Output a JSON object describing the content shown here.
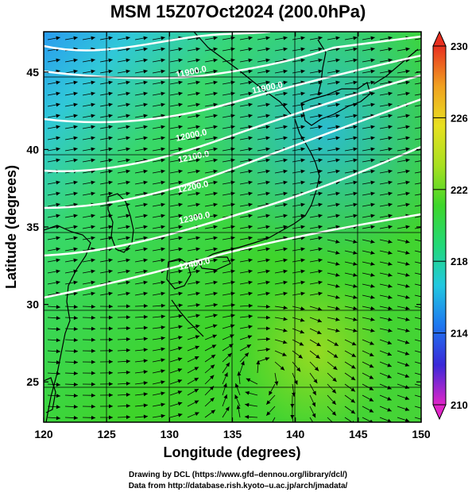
{
  "title": "MSM 15Z07Oct2024 (200.0hPa)",
  "x_axis": {
    "label": "Longitude (degrees)",
    "ticks": [
      "120",
      "125",
      "130",
      "135",
      "140",
      "145",
      "150"
    ],
    "range": [
      120,
      150
    ]
  },
  "y_axis": {
    "label": "Latitude  (degrees)",
    "ticks": [
      "25",
      "30",
      "35",
      "40",
      "45"
    ],
    "range": [
      22.4,
      47.6
    ]
  },
  "colorbar": {
    "ticks": [
      "230",
      "226",
      "222",
      "218",
      "214",
      "210"
    ],
    "range": [
      210,
      230
    ],
    "colors": [
      "#e026c8",
      "#3a28d8",
      "#1e78f0",
      "#22c8e0",
      "#22d878",
      "#3ed62a",
      "#a8e020",
      "#e8e020",
      "#f0a020",
      "#e83020"
    ]
  },
  "contours": [
    {
      "label": "11900.0"
    },
    {
      "label": "11900.0"
    },
    {
      "label": "12000.0"
    },
    {
      "label": "12100.0"
    },
    {
      "label": "12200.0"
    },
    {
      "label": "12300.0"
    },
    {
      "label": "12400.0"
    }
  ],
  "credits": {
    "line1": "Drawing by DCL (https://www.gfd–dennou.org/library/dcl/)",
    "line2": "Data from http://database.rish.kyoto–u.ac.jp/arch/jmadata/"
  },
  "colors": {
    "coast": "#000000",
    "contour": "#ffffff",
    "streamline": "#000000"
  }
}
